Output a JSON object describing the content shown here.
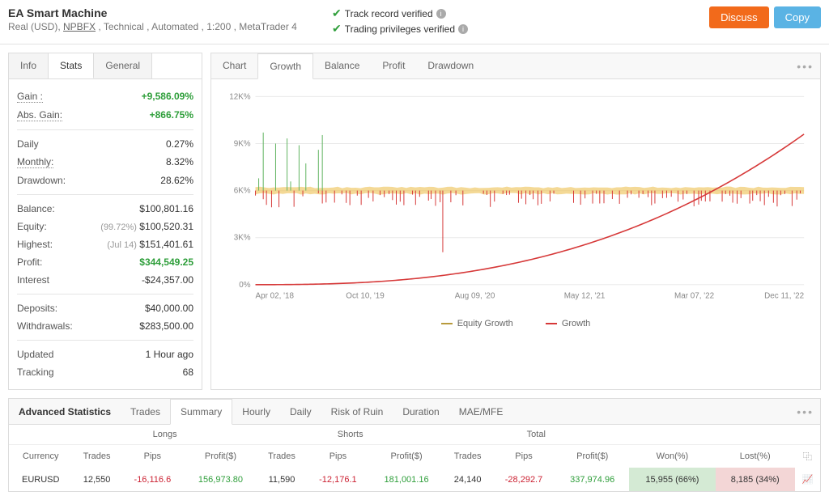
{
  "header": {
    "title": "EA Smart Machine",
    "subtitle_prefix": "Real (USD), ",
    "broker": "NPBFX",
    "subtitle_suffix": " , Technical , Automated , 1:200 , MetaTrader 4",
    "verified1": "Track record verified",
    "verified2": "Trading privileges verified",
    "discuss": "Discuss",
    "copy": "Copy"
  },
  "left_tabs": {
    "info": "Info",
    "stats": "Stats",
    "general": "General"
  },
  "stats": {
    "gain_label": "Gain :",
    "gain_value": "+9,586.09%",
    "abs_gain_label": "Abs. Gain:",
    "abs_gain_value": "+866.75%",
    "daily_label": "Daily",
    "daily_value": "0.27%",
    "monthly_label": "Monthly:",
    "monthly_value": "8.32%",
    "drawdown_label": "Drawdown:",
    "drawdown_value": "28.62%",
    "balance_label": "Balance:",
    "balance_value": "$100,801.16",
    "equity_label": "Equity:",
    "equity_paren": "(99.72%)",
    "equity_value": "$100,520.31",
    "highest_label": "Highest:",
    "highest_paren": "(Jul 14)",
    "highest_value": "$151,401.61",
    "profit_label": "Profit:",
    "profit_value": "$344,549.25",
    "interest_label": "Interest",
    "interest_value": "-$24,357.00",
    "deposits_label": "Deposits:",
    "deposits_value": "$40,000.00",
    "withdrawals_label": "Withdrawals:",
    "withdrawals_value": "$283,500.00",
    "updated_label": "Updated",
    "updated_value": "1 Hour ago",
    "tracking_label": "Tracking",
    "tracking_value": "68"
  },
  "chart_tabs": {
    "chart": "Chart",
    "growth": "Growth",
    "balance": "Balance",
    "profit": "Profit",
    "drawdown": "Drawdown"
  },
  "chart": {
    "y_labels": [
      "12K%",
      "9K%",
      "6K%",
      "3K%",
      "0%"
    ],
    "x_labels": [
      "Apr 02, '18",
      "Oct 10, '19",
      "Aug 09, '20",
      "May 12, '21",
      "Mar 07, '22",
      "Dec 11, '22"
    ],
    "legend_equity": "Equity Growth",
    "legend_growth": "Growth",
    "colors": {
      "growth": "#d63838",
      "equity_fill": "#efc96a",
      "equity_line": "#b89a3c",
      "grid": "#e8e8e8",
      "text": "#888",
      "noise_green": "#5fb35f",
      "noise_red": "#d63838"
    }
  },
  "adv": {
    "title": "Advanced Statistics",
    "tabs": {
      "trades": "Trades",
      "summary": "Summary",
      "hourly": "Hourly",
      "daily": "Daily",
      "ror": "Risk of Ruin",
      "duration": "Duration",
      "mae": "MAE/MFE"
    },
    "groups": {
      "longs": "Longs",
      "shorts": "Shorts",
      "total": "Total"
    },
    "cols": {
      "currency": "Currency",
      "trades": "Trades",
      "pips": "Pips",
      "profit": "Profit($)",
      "won": "Won(%)",
      "lost": "Lost(%)"
    },
    "row": {
      "currency": "EURUSD",
      "l_trades": "12,550",
      "l_pips": "-16,116.6",
      "l_profit": "156,973.80",
      "s_trades": "11,590",
      "s_pips": "-12,176.1",
      "s_profit": "181,001.16",
      "t_trades": "24,140",
      "t_pips": "-28,292.7",
      "t_profit": "337,974.96",
      "won": "15,955 (66%)",
      "lost": "8,185 (34%)"
    }
  }
}
